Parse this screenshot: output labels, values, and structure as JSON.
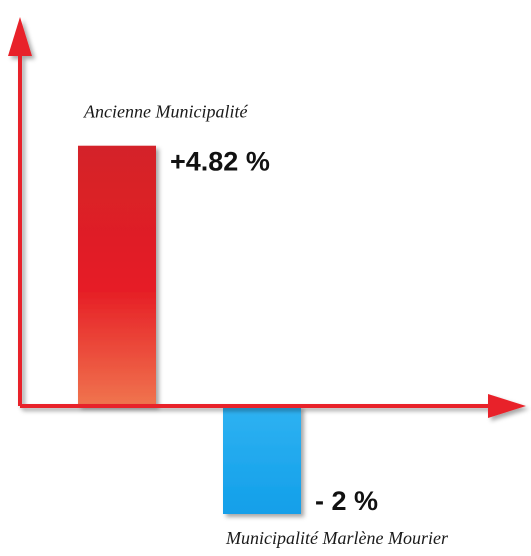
{
  "chart_data": {
    "type": "bar",
    "categories": [
      "Ancienne Municipalité",
      "Municipalité Marlène Mourier"
    ],
    "values": [
      4.82,
      -2
    ],
    "data_labels": [
      "+4.82 %",
      "- 2 %"
    ],
    "title": "",
    "xlabel": "",
    "ylabel": "",
    "grid": false,
    "ylim": [
      -2.95,
      9.17
    ],
    "bar_colors": [
      "#e3262b",
      "#1eaaf1"
    ],
    "axis_color": "#e8242a"
  }
}
